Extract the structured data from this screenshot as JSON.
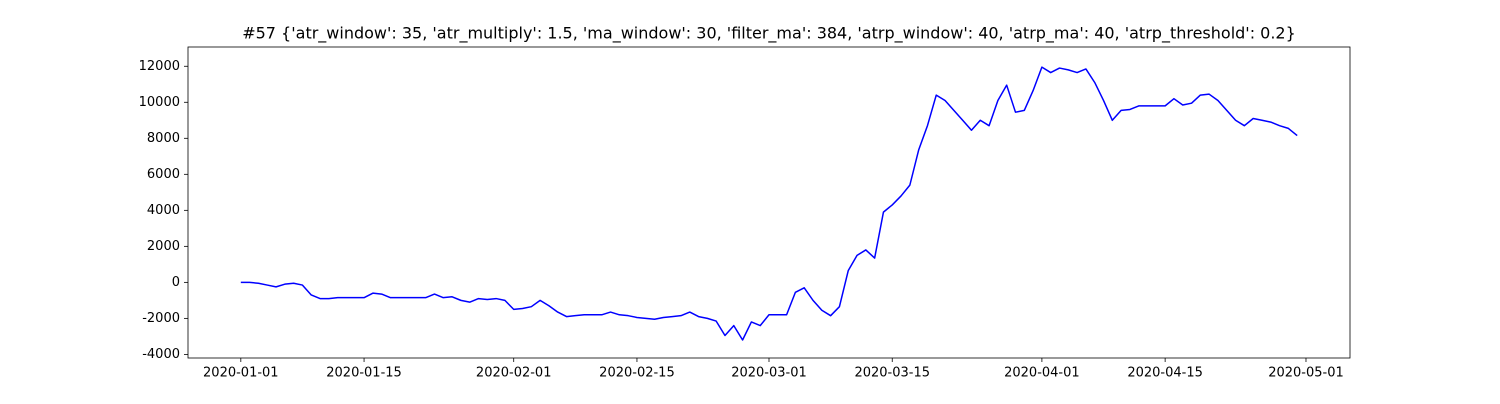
{
  "chart_data": {
    "type": "line",
    "title": "#57 {'atr_window': 35, 'atr_multiply': 1.5, 'ma_window': 30, 'filter_ma': 384, 'atrp_window': 40, 'atrp_ma': 40, 'atrp_threshold': 0.2}",
    "x": [
      "2020-01-01",
      "2020-01-02",
      "2020-01-03",
      "2020-01-04",
      "2020-01-05",
      "2020-01-06",
      "2020-01-07",
      "2020-01-08",
      "2020-01-09",
      "2020-01-10",
      "2020-01-11",
      "2020-01-12",
      "2020-01-13",
      "2020-01-14",
      "2020-01-15",
      "2020-01-16",
      "2020-01-17",
      "2020-01-18",
      "2020-01-19",
      "2020-01-20",
      "2020-01-21",
      "2020-01-22",
      "2020-01-23",
      "2020-01-24",
      "2020-01-25",
      "2020-01-26",
      "2020-01-27",
      "2020-01-28",
      "2020-01-29",
      "2020-01-30",
      "2020-01-31",
      "2020-02-01",
      "2020-02-02",
      "2020-02-03",
      "2020-02-04",
      "2020-02-05",
      "2020-02-06",
      "2020-02-07",
      "2020-02-08",
      "2020-02-09",
      "2020-02-10",
      "2020-02-11",
      "2020-02-12",
      "2020-02-13",
      "2020-02-14",
      "2020-02-15",
      "2020-02-16",
      "2020-02-17",
      "2020-02-18",
      "2020-02-19",
      "2020-02-20",
      "2020-02-21",
      "2020-02-22",
      "2020-02-23",
      "2020-02-24",
      "2020-02-25",
      "2020-02-26",
      "2020-02-27",
      "2020-02-28",
      "2020-02-29",
      "2020-03-01",
      "2020-03-02",
      "2020-03-03",
      "2020-03-04",
      "2020-03-05",
      "2020-03-06",
      "2020-03-07",
      "2020-03-08",
      "2020-03-09",
      "2020-03-10",
      "2020-03-11",
      "2020-03-12",
      "2020-03-13",
      "2020-03-14",
      "2020-03-15",
      "2020-03-16",
      "2020-03-17",
      "2020-03-18",
      "2020-03-19",
      "2020-03-20",
      "2020-03-21",
      "2020-03-22",
      "2020-03-23",
      "2020-03-24",
      "2020-03-25",
      "2020-03-26",
      "2020-03-27",
      "2020-03-28",
      "2020-03-29",
      "2020-03-30",
      "2020-03-31",
      "2020-04-01",
      "2020-04-02",
      "2020-04-03",
      "2020-04-04",
      "2020-04-05",
      "2020-04-06",
      "2020-04-07",
      "2020-04-08",
      "2020-04-09",
      "2020-04-10",
      "2020-04-11",
      "2020-04-12",
      "2020-04-13",
      "2020-04-14",
      "2020-04-15",
      "2020-04-16",
      "2020-04-17",
      "2020-04-18",
      "2020-04-19",
      "2020-04-20",
      "2020-04-21",
      "2020-04-22",
      "2020-04-23",
      "2020-04-24",
      "2020-04-25",
      "2020-04-26",
      "2020-04-27",
      "2020-04-28",
      "2020-04-29",
      "2020-04-30"
    ],
    "series": [
      {
        "color": "blue",
        "values": [
          0,
          0,
          -50,
          -150,
          -250,
          -100,
          -50,
          -150,
          -700,
          -900,
          -900,
          -850,
          -850,
          -850,
          -850,
          -600,
          -650,
          -850,
          -850,
          -850,
          -850,
          -850,
          -650,
          -850,
          -800,
          -1000,
          -1100,
          -900,
          -950,
          -900,
          -1000,
          -1500,
          -1450,
          -1350,
          -1000,
          -1300,
          -1650,
          -1900,
          -1850,
          -1800,
          -1800,
          -1800,
          -1650,
          -1800,
          -1850,
          -1950,
          -2000,
          -2050,
          -1950,
          -1900,
          -1850,
          -1650,
          -1900,
          -2000,
          -2150,
          -2950,
          -2400,
          -3200,
          -2200,
          -2400,
          -1800,
          -1800,
          -1800,
          -550,
          -300,
          -1000,
          -1550,
          -1850,
          -1350,
          650,
          1500,
          1800,
          1350,
          3900,
          4300,
          4800,
          5400,
          7350,
          8700,
          10400,
          10100,
          9550,
          9000,
          8450,
          9000,
          8700,
          10100,
          10950,
          9450,
          9550,
          10650,
          11950,
          11650,
          11900,
          11800,
          11650,
          11850,
          11100,
          10100,
          9000,
          9550,
          9600,
          9800,
          9800,
          9800,
          9800,
          10200,
          9850,
          9950,
          10400,
          10450,
          10100,
          9550,
          9000,
          8700,
          9100,
          9000,
          8900,
          8700,
          8550,
          8150
        ]
      }
    ],
    "xlim": [
      "2019-12-26",
      "2020-05-06"
    ],
    "xticks": [
      "2020-01-01",
      "2020-01-15",
      "2020-02-01",
      "2020-02-15",
      "2020-03-01",
      "2020-03-15",
      "2020-04-01",
      "2020-04-15",
      "2020-05-01"
    ],
    "ylim": [
      -4200,
      13070
    ],
    "yticks": [
      -4000,
      -2000,
      0,
      2000,
      4000,
      6000,
      8000,
      10000,
      12000
    ]
  }
}
